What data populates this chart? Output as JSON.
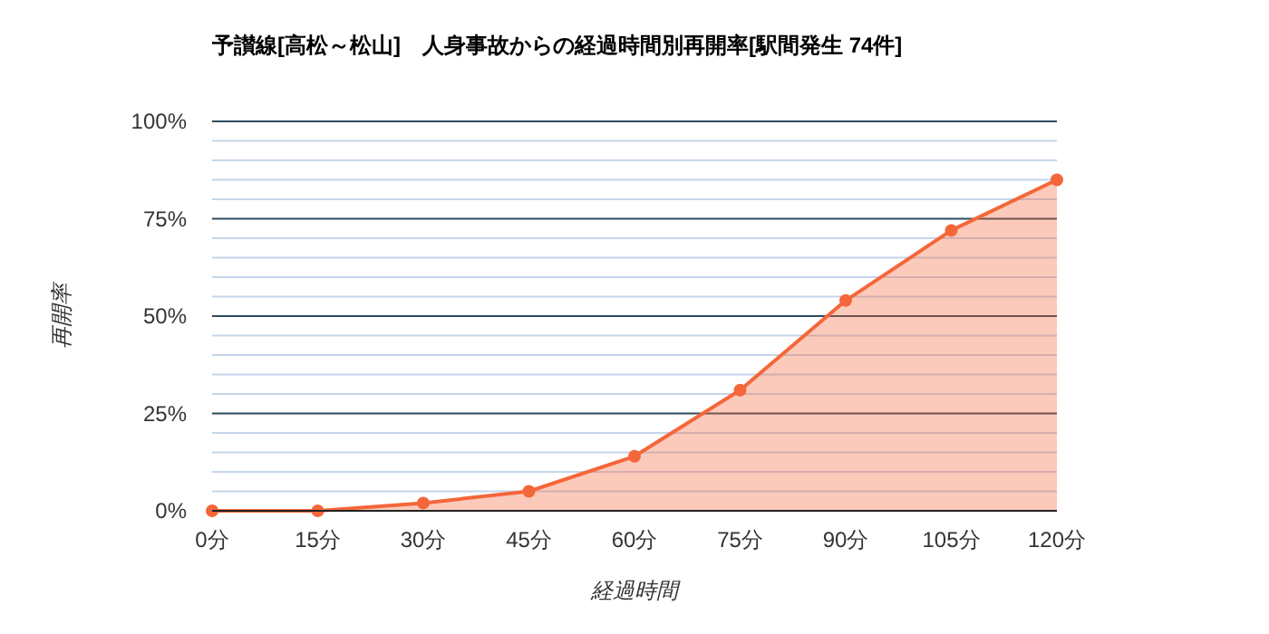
{
  "chart_data": {
    "type": "area",
    "title": "予讃線[高松～松山]　人身事故からの経過時間別再開率[駅間発生 74件]",
    "xlabel": "経過時間",
    "ylabel": "再開率",
    "categories": [
      "0分",
      "15分",
      "30分",
      "45分",
      "60分",
      "75分",
      "90分",
      "105分",
      "120分"
    ],
    "series": [
      {
        "color": "#f4673a",
        "values": [
          0,
          0,
          2,
          5,
          14,
          31,
          54,
          72,
          85
        ]
      }
    ],
    "ylim": [
      0,
      100
    ],
    "yticks": [
      {
        "value": 0,
        "label": "0%"
      },
      {
        "value": 5,
        "label": null
      },
      {
        "value": 10,
        "label": null
      },
      {
        "value": 15,
        "label": null
      },
      {
        "value": 20,
        "label": null
      },
      {
        "value": 25,
        "label": "25%"
      },
      {
        "value": 30,
        "label": null
      },
      {
        "value": 35,
        "label": null
      },
      {
        "value": 40,
        "label": null
      },
      {
        "value": 45,
        "label": null
      },
      {
        "value": 50,
        "label": "50%"
      },
      {
        "value": 55,
        "label": null
      },
      {
        "value": 60,
        "label": null
      },
      {
        "value": 65,
        "label": null
      },
      {
        "value": 70,
        "label": null
      },
      {
        "value": 75,
        "label": "75%"
      },
      {
        "value": 80,
        "label": null
      },
      {
        "value": 85,
        "label": null
      },
      {
        "value": 90,
        "label": null
      },
      {
        "value": 95,
        "label": null
      },
      {
        "value": 100,
        "label": "100%"
      }
    ],
    "grid": "y",
    "marker": "circle"
  }
}
